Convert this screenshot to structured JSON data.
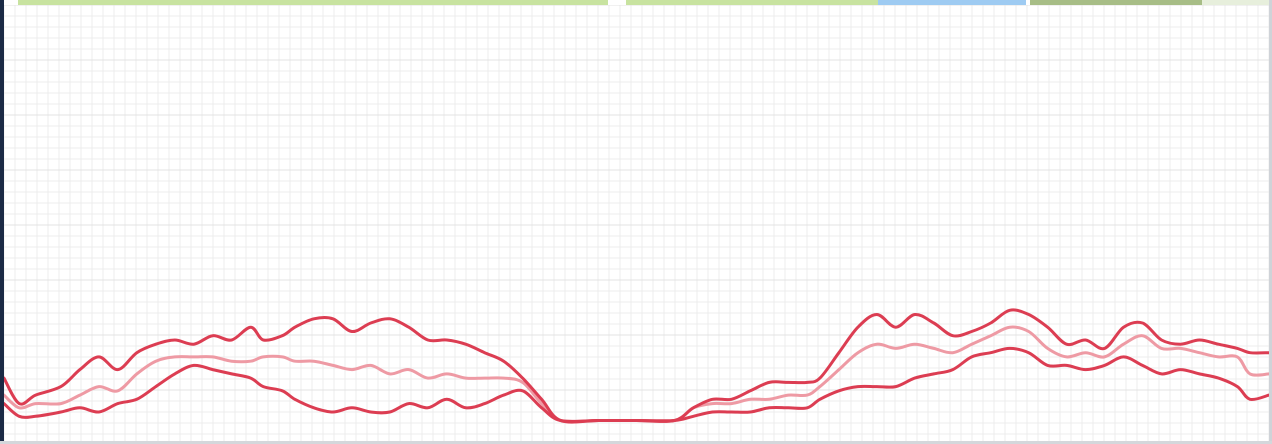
{
  "map_strip": {
    "colors": [
      "#c8e3a0",
      "#c8e3a0",
      "#9ecbf2",
      "#a7bd86",
      "#e7efdc"
    ]
  },
  "chart_data": {
    "type": "line",
    "grid": true,
    "ylim": [
      0,
      1
    ],
    "xlim": [
      0,
      1
    ],
    "colors": {
      "outer": "#dc3d52",
      "center": "#ee9aa4",
      "grid_minor": "#ececec",
      "grid_major": "#e3e3e3"
    },
    "series": [
      {
        "role": "upper",
        "values": [
          [
            0.0,
            0.12
          ],
          [
            0.012,
            0.06
          ],
          [
            0.025,
            0.08
          ],
          [
            0.045,
            0.1
          ],
          [
            0.06,
            0.14
          ],
          [
            0.075,
            0.17
          ],
          [
            0.09,
            0.14
          ],
          [
            0.105,
            0.18
          ],
          [
            0.12,
            0.2
          ],
          [
            0.135,
            0.21
          ],
          [
            0.15,
            0.2
          ],
          [
            0.165,
            0.22
          ],
          [
            0.18,
            0.21
          ],
          [
            0.195,
            0.24
          ],
          [
            0.205,
            0.21
          ],
          [
            0.22,
            0.22
          ],
          [
            0.23,
            0.24
          ],
          [
            0.245,
            0.26
          ],
          [
            0.26,
            0.26
          ],
          [
            0.275,
            0.23
          ],
          [
            0.29,
            0.25
          ],
          [
            0.305,
            0.26
          ],
          [
            0.32,
            0.24
          ],
          [
            0.335,
            0.21
          ],
          [
            0.35,
            0.21
          ],
          [
            0.365,
            0.2
          ],
          [
            0.38,
            0.18
          ],
          [
            0.395,
            0.16
          ],
          [
            0.41,
            0.12
          ],
          [
            0.425,
            0.07
          ],
          [
            0.44,
            0.02
          ],
          [
            0.47,
            0.02
          ],
          [
            0.5,
            0.02
          ],
          [
            0.53,
            0.02
          ],
          [
            0.545,
            0.05
          ],
          [
            0.56,
            0.07
          ],
          [
            0.575,
            0.07
          ],
          [
            0.59,
            0.09
          ],
          [
            0.605,
            0.11
          ],
          [
            0.62,
            0.11
          ],
          [
            0.635,
            0.11
          ],
          [
            0.645,
            0.12
          ],
          [
            0.66,
            0.18
          ],
          [
            0.675,
            0.24
          ],
          [
            0.69,
            0.27
          ],
          [
            0.705,
            0.24
          ],
          [
            0.72,
            0.27
          ],
          [
            0.735,
            0.25
          ],
          [
            0.75,
            0.22
          ],
          [
            0.765,
            0.23
          ],
          [
            0.78,
            0.25
          ],
          [
            0.795,
            0.28
          ],
          [
            0.81,
            0.27
          ],
          [
            0.825,
            0.24
          ],
          [
            0.84,
            0.2
          ],
          [
            0.855,
            0.21
          ],
          [
            0.87,
            0.19
          ],
          [
            0.885,
            0.24
          ],
          [
            0.9,
            0.25
          ],
          [
            0.915,
            0.21
          ],
          [
            0.93,
            0.2
          ],
          [
            0.945,
            0.21
          ],
          [
            0.96,
            0.2
          ],
          [
            0.975,
            0.19
          ],
          [
            0.985,
            0.18
          ],
          [
            1.0,
            0.18
          ]
        ]
      },
      {
        "role": "center",
        "values": [
          [
            0.0,
            0.08
          ],
          [
            0.012,
            0.05
          ],
          [
            0.025,
            0.06
          ],
          [
            0.045,
            0.06
          ],
          [
            0.06,
            0.08
          ],
          [
            0.075,
            0.1
          ],
          [
            0.09,
            0.09
          ],
          [
            0.105,
            0.13
          ],
          [
            0.12,
            0.16
          ],
          [
            0.135,
            0.17
          ],
          [
            0.15,
            0.17
          ],
          [
            0.165,
            0.17
          ],
          [
            0.18,
            0.16
          ],
          [
            0.195,
            0.16
          ],
          [
            0.205,
            0.17
          ],
          [
            0.22,
            0.17
          ],
          [
            0.23,
            0.16
          ],
          [
            0.245,
            0.16
          ],
          [
            0.26,
            0.15
          ],
          [
            0.275,
            0.14
          ],
          [
            0.29,
            0.15
          ],
          [
            0.305,
            0.13
          ],
          [
            0.32,
            0.14
          ],
          [
            0.335,
            0.12
          ],
          [
            0.35,
            0.13
          ],
          [
            0.365,
            0.12
          ],
          [
            0.38,
            0.12
          ],
          [
            0.395,
            0.12
          ],
          [
            0.41,
            0.11
          ],
          [
            0.425,
            0.06
          ],
          [
            0.44,
            0.02
          ],
          [
            0.47,
            0.02
          ],
          [
            0.5,
            0.02
          ],
          [
            0.53,
            0.02
          ],
          [
            0.545,
            0.05
          ],
          [
            0.56,
            0.06
          ],
          [
            0.575,
            0.06
          ],
          [
            0.59,
            0.07
          ],
          [
            0.605,
            0.07
          ],
          [
            0.62,
            0.08
          ],
          [
            0.635,
            0.08
          ],
          [
            0.645,
            0.1
          ],
          [
            0.66,
            0.14
          ],
          [
            0.675,
            0.18
          ],
          [
            0.69,
            0.2
          ],
          [
            0.705,
            0.19
          ],
          [
            0.72,
            0.2
          ],
          [
            0.735,
            0.19
          ],
          [
            0.75,
            0.18
          ],
          [
            0.765,
            0.2
          ],
          [
            0.78,
            0.22
          ],
          [
            0.795,
            0.24
          ],
          [
            0.81,
            0.23
          ],
          [
            0.825,
            0.19
          ],
          [
            0.84,
            0.17
          ],
          [
            0.855,
            0.18
          ],
          [
            0.87,
            0.17
          ],
          [
            0.885,
            0.2
          ],
          [
            0.9,
            0.22
          ],
          [
            0.915,
            0.19
          ],
          [
            0.93,
            0.19
          ],
          [
            0.945,
            0.18
          ],
          [
            0.96,
            0.17
          ],
          [
            0.975,
            0.17
          ],
          [
            0.985,
            0.13
          ],
          [
            1.0,
            0.13
          ]
        ]
      },
      {
        "role": "lower",
        "values": [
          [
            0.0,
            0.06
          ],
          [
            0.012,
            0.03
          ],
          [
            0.025,
            0.03
          ],
          [
            0.045,
            0.04
          ],
          [
            0.06,
            0.05
          ],
          [
            0.075,
            0.04
          ],
          [
            0.09,
            0.06
          ],
          [
            0.105,
            0.07
          ],
          [
            0.12,
            0.1
          ],
          [
            0.135,
            0.13
          ],
          [
            0.15,
            0.15
          ],
          [
            0.165,
            0.14
          ],
          [
            0.18,
            0.13
          ],
          [
            0.195,
            0.12
          ],
          [
            0.205,
            0.1
          ],
          [
            0.22,
            0.09
          ],
          [
            0.23,
            0.07
          ],
          [
            0.245,
            0.05
          ],
          [
            0.26,
            0.04
          ],
          [
            0.275,
            0.05
          ],
          [
            0.29,
            0.04
          ],
          [
            0.305,
            0.04
          ],
          [
            0.32,
            0.06
          ],
          [
            0.335,
            0.05
          ],
          [
            0.35,
            0.07
          ],
          [
            0.365,
            0.05
          ],
          [
            0.38,
            0.06
          ],
          [
            0.395,
            0.08
          ],
          [
            0.41,
            0.09
          ],
          [
            0.425,
            0.05
          ],
          [
            0.44,
            0.02
          ],
          [
            0.47,
            0.02
          ],
          [
            0.5,
            0.02
          ],
          [
            0.53,
            0.02
          ],
          [
            0.545,
            0.03
          ],
          [
            0.56,
            0.04
          ],
          [
            0.575,
            0.04
          ],
          [
            0.59,
            0.04
          ],
          [
            0.605,
            0.05
          ],
          [
            0.62,
            0.05
          ],
          [
            0.635,
            0.05
          ],
          [
            0.645,
            0.07
          ],
          [
            0.66,
            0.09
          ],
          [
            0.675,
            0.1
          ],
          [
            0.69,
            0.1
          ],
          [
            0.705,
            0.1
          ],
          [
            0.72,
            0.12
          ],
          [
            0.735,
            0.13
          ],
          [
            0.75,
            0.14
          ],
          [
            0.765,
            0.17
          ],
          [
            0.78,
            0.18
          ],
          [
            0.795,
            0.19
          ],
          [
            0.81,
            0.18
          ],
          [
            0.825,
            0.15
          ],
          [
            0.84,
            0.15
          ],
          [
            0.855,
            0.14
          ],
          [
            0.87,
            0.15
          ],
          [
            0.885,
            0.17
          ],
          [
            0.9,
            0.15
          ],
          [
            0.915,
            0.13
          ],
          [
            0.93,
            0.14
          ],
          [
            0.945,
            0.13
          ],
          [
            0.96,
            0.12
          ],
          [
            0.975,
            0.1
          ],
          [
            0.985,
            0.07
          ],
          [
            1.0,
            0.08
          ]
        ]
      }
    ]
  }
}
